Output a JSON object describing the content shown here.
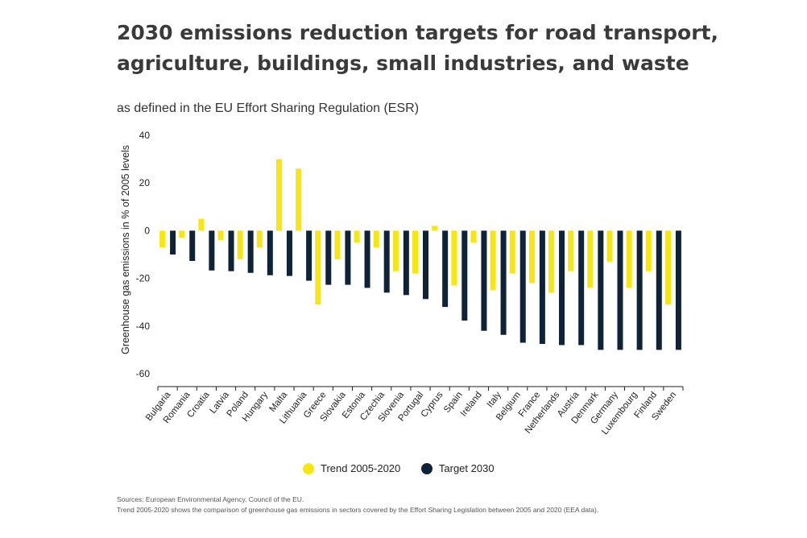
{
  "header": {
    "title": "2030 emissions reduction targets for road transport, agriculture, buildings, small industries, and waste",
    "subtitle": "as defined in the EU Effort Sharing Regulation (ESR)"
  },
  "footer": {
    "sources": "Sources: European Environmental Agency, Council of the EU.",
    "note": "Trend 2005-2020 shows the comparison of greenhouse gas emissions in sectors covered by the Effort Sharing Legislation between 2005 and 2020 (EEA data)."
  },
  "colors": {
    "trend": "#f7e614",
    "target": "#0e2238"
  },
  "chart_data": {
    "type": "bar",
    "title": "2030 emissions reduction targets for road transport, agriculture, buildings, small industries, and waste",
    "subtitle": "as defined in the EU Effort Sharing Regulation (ESR)",
    "xlabel": "",
    "ylabel": "Greenhouse gas emissions in % of 2005 levels",
    "ylim": [
      -60,
      40
    ],
    "yticks": [
      40,
      20,
      0,
      -20,
      -40,
      -60
    ],
    "grid": false,
    "legend_position": "bottom-center",
    "categories": [
      "Bulgaria",
      "Romania",
      "Croatia",
      "Latvia",
      "Poland",
      "Hungary",
      "Malta",
      "Lithuania",
      "Greece",
      "Slovakia",
      "Estonia",
      "Czechia",
      "Slovenia",
      "Portugal",
      "Cyprus",
      "Spain",
      "Ireland",
      "Italy",
      "Belgium",
      "France",
      "Netherlands",
      "Austria",
      "Denmark",
      "Germany",
      "Luxembourg",
      "Finland",
      "Sweden"
    ],
    "series": [
      {
        "name": "Trend 2005-2020",
        "values": [
          -7,
          -3,
          5,
          -4,
          -12,
          -7,
          30,
          26,
          -31,
          -12,
          -5,
          -7,
          -17,
          -18,
          2,
          -23,
          -5,
          -25,
          -18,
          -22,
          -26,
          -17,
          -24,
          -13,
          -24,
          -17,
          -31
        ]
      },
      {
        "name": "Target 2030",
        "values": [
          -10,
          -12.7,
          -16.7,
          -17,
          -17.7,
          -18.7,
          -19,
          -21,
          -22.7,
          -22.7,
          -24,
          -26,
          -27,
          -28.7,
          -32,
          -37.7,
          -42,
          -43.7,
          -47,
          -47.5,
          -48,
          -48,
          -50,
          -50,
          -50,
          -50,
          -50
        ]
      }
    ]
  }
}
